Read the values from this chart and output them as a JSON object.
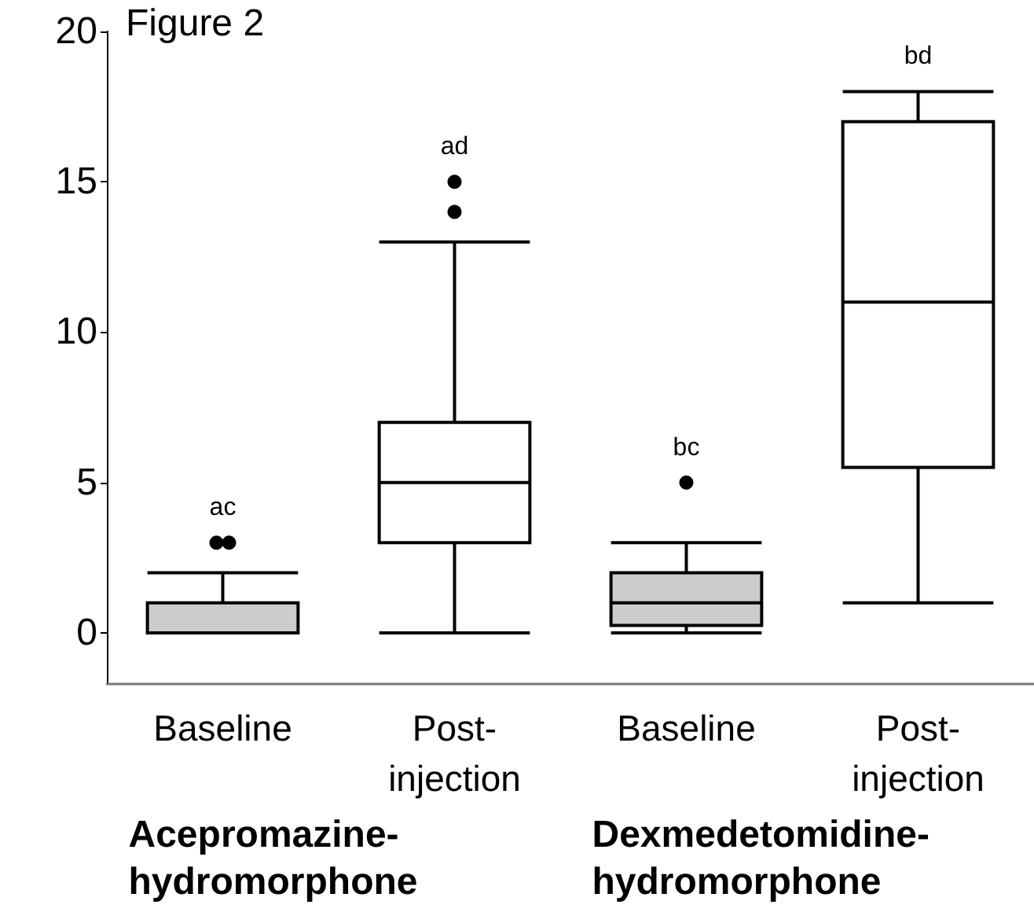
{
  "chart_data": {
    "type": "box",
    "title": "Figure 2",
    "categories": [
      "Baseline",
      "Post-injection",
      "Baseline",
      "Post-injection"
    ],
    "boxes": [
      {
        "low": 0,
        "q1": 0,
        "median": 0,
        "q3": 1,
        "high": 2,
        "outliers": [
          3,
          3
        ]
      },
      {
        "low": 0,
        "q1": 3,
        "median": 5,
        "q3": 7,
        "high": 13,
        "outliers": [
          14,
          15
        ]
      },
      {
        "low": 0,
        "q1": 0.25,
        "median": 1,
        "q3": 2,
        "high": 3,
        "outliers": [
          5
        ]
      },
      {
        "low": 1,
        "q1": 5.5,
        "median": 11,
        "q3": 17,
        "high": 18
      }
    ],
    "colors": [
      "#cccccc",
      "#ffffff",
      "#cccccc",
      "#ffffff"
    ],
    "ylim": [
      -1.7,
      20
    ],
    "yticks": [
      0,
      5,
      10,
      15,
      20
    ],
    "grid": false,
    "annotations": [
      "ac",
      "ad",
      "bc",
      "bd",
      "Acepromazine-hydromorphone",
      "Dexmedetomidine-hydromorphone"
    ]
  }
}
